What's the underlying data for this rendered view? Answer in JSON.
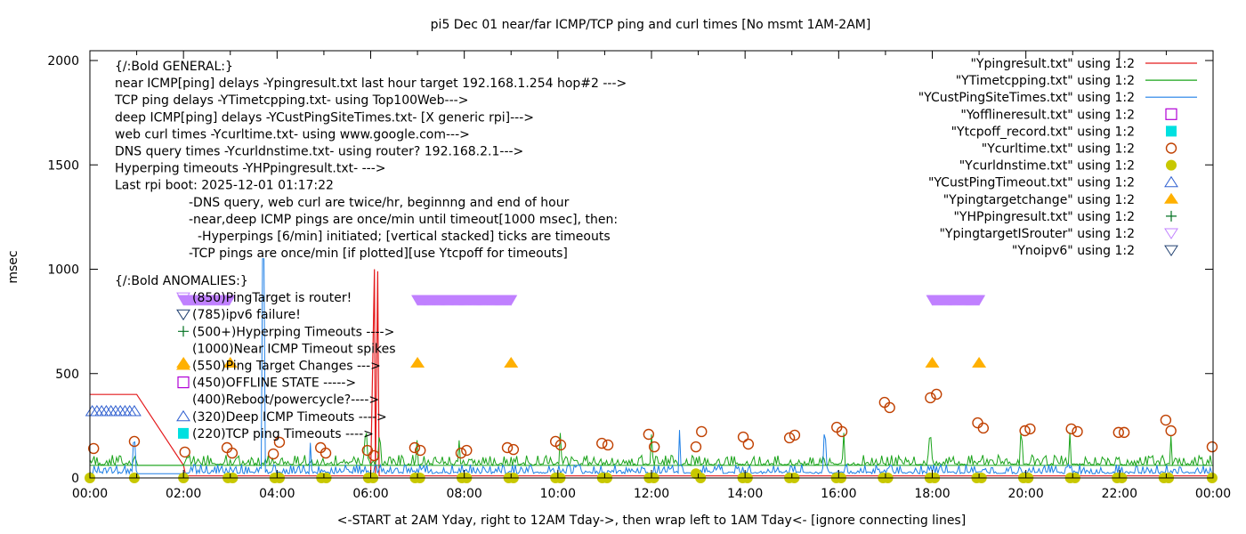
{
  "chart_data": {
    "type": "line",
    "title": "pi5 Dec 01  near/far ICMP/TCP ping and curl times [No msmt 1AM-2AM]",
    "xlabel": "<-START at 2AM Yday, right to 12AM Tday->, then wrap left to 1AM Tday<- [ignore connecting lines]",
    "ylabel": "msec",
    "xlim_hours": [
      0,
      24
    ],
    "ylim": [
      0,
      2050
    ],
    "x_ticks": [
      "00:00",
      "02:00",
      "04:00",
      "06:00",
      "08:00",
      "10:00",
      "12:00",
      "14:00",
      "16:00",
      "18:00",
      "20:00",
      "22:00",
      "00:00"
    ],
    "x_tick_hours": [
      0,
      2,
      4,
      6,
      8,
      10,
      12,
      14,
      16,
      18,
      20,
      22,
      24
    ],
    "y_ticks": [
      0,
      500,
      1000,
      1500,
      2000
    ],
    "grid": false,
    "legend_position": "top-right",
    "annotations": {
      "general_header": "{/:Bold GENERAL:}",
      "general_lines": [
        "near ICMP[ping] delays -Ypingresult.txt last hour target 192.168.1.254 hop#2 --->",
        "TCP ping delays -YTimetcpping.txt- using Top100Web--->",
        "deep ICMP[ping] delays -YCustPingSiteTimes.txt- [X generic rpi]--->",
        "web curl times -Ycurltime.txt- using www.google.com--->",
        "DNS query times -Ycurldnstime.txt- using router? 192.168.2.1--->",
        "Hyperping timeouts -YHPpingresult.txt- --->",
        "Last rpi boot: 2025-12-01 01:17:22"
      ],
      "notes": [
        "-DNS query, web curl are twice/hr, beginnng and end of hour",
        "-near,deep ICMP pings are once/min until timeout[1000 msec], then:",
        "-Hyperpings [6/min] initiated; [vertical stacked] ticks are timeouts",
        "-TCP pings are once/min [if plotted][use Ytcpoff for timeouts]"
      ],
      "anomalies_header": "{/:Bold ANOMALIES:}",
      "anomalies": [
        {
          "marker": "tri-down-violet",
          "text": "(850)PingTarget is router!"
        },
        {
          "marker": "tri-down-navy",
          "text": "(785)ipv6 failure!"
        },
        {
          "marker": "plus-green",
          "text": "(500+)Hyperping Timeouts ---->"
        },
        {
          "marker": "none",
          "text": "(1000)Near ICMP Timeout spikes"
        },
        {
          "marker": "tri-up-orange",
          "text": "(550)Ping Target Changes --->"
        },
        {
          "marker": "square-open-purple",
          "text": "(450)OFFLINE STATE ----->"
        },
        {
          "marker": "none",
          "text": "(400)Reboot/powercycle?---->"
        },
        {
          "marker": "tri-up-open-blue",
          "text": "(320)Deep ICMP Timeouts ---->"
        },
        {
          "marker": "square-cyan",
          "text": "(220)TCP ping Timeouts ---->"
        }
      ]
    },
    "series": [
      {
        "name": "\"Ypingresult.txt\" using 1:2",
        "style": "line",
        "color": "#e41a1c",
        "points": [
          [
            0,
            400
          ],
          [
            1.0,
            400
          ],
          [
            2.0,
            60
          ],
          [
            2.05,
            10
          ],
          [
            6.0,
            10
          ],
          [
            6.08,
            1000
          ],
          [
            6.1,
            10
          ],
          [
            6.15,
            990
          ],
          [
            6.18,
            10
          ],
          [
            24,
            10
          ]
        ]
      },
      {
        "name": "\"YTimetcpping.txt\" using 1:2",
        "style": "line",
        "color": "#1aa31a",
        "baseline": 60,
        "noise_amp": 50,
        "spikes_hours": [
          5.9,
          6.2,
          7.0,
          7.9,
          10.05,
          12.0,
          16.1,
          17.95,
          19.9,
          20.95,
          23.1
        ]
      },
      {
        "name": "\"YCustPingSiteTimes.txt\" using 1:2",
        "style": "line",
        "color": "#1e7fe6",
        "baseline": 20,
        "noise_amp": 45,
        "spikes_hours": [
          0.95,
          3.7,
          4.7,
          12.6,
          15.7
        ]
      },
      {
        "name": "\"Yofflineresult.txt\" using 1:2",
        "style": "marker",
        "marker": "square-open",
        "color": "#b000d6",
        "points": []
      },
      {
        "name": "\"Ytcpoff_record.txt\" using 1:2",
        "style": "marker",
        "marker": "square-filled",
        "color": "#00e0e0",
        "points": []
      },
      {
        "name": "\"Ycurltime.txt\" using 1:2",
        "style": "marker",
        "marker": "circle-open",
        "color": "#c04000",
        "points": [
          [
            0.08,
            141
          ],
          [
            0.95,
            175
          ],
          [
            2.03,
            124
          ],
          [
            2.93,
            145
          ],
          [
            3.04,
            119
          ],
          [
            3.92,
            115
          ],
          [
            4.05,
            171
          ],
          [
            4.93,
            145
          ],
          [
            5.04,
            119
          ],
          [
            5.93,
            132
          ],
          [
            6.07,
            107
          ],
          [
            6.94,
            145
          ],
          [
            7.06,
            132
          ],
          [
            7.93,
            119
          ],
          [
            8.05,
            132
          ],
          [
            8.92,
            145
          ],
          [
            9.05,
            136
          ],
          [
            9.95,
            175
          ],
          [
            10.06,
            158
          ],
          [
            10.94,
            166
          ],
          [
            11.07,
            158
          ],
          [
            11.94,
            209
          ],
          [
            12.06,
            149
          ],
          [
            12.95,
            149
          ],
          [
            13.07,
            222
          ],
          [
            13.96,
            196
          ],
          [
            14.07,
            162
          ],
          [
            14.95,
            192
          ],
          [
            15.06,
            205
          ],
          [
            15.96,
            243
          ],
          [
            16.07,
            222
          ],
          [
            16.98,
            362
          ],
          [
            17.09,
            337
          ],
          [
            17.96,
            384
          ],
          [
            18.09,
            401
          ],
          [
            18.97,
            264
          ],
          [
            19.09,
            239
          ],
          [
            19.98,
            226
          ],
          [
            20.09,
            235
          ],
          [
            20.97,
            235
          ],
          [
            21.1,
            222
          ],
          [
            21.98,
            218
          ],
          [
            22.1,
            218
          ],
          [
            22.99,
            277
          ],
          [
            23.1,
            226
          ],
          [
            23.98,
            149
          ]
        ]
      },
      {
        "name": "\"Ycurldnstime.txt\" using 1:2",
        "style": "marker",
        "marker": "circle-filled",
        "color": "#c8c800",
        "points": [
          [
            0.0,
            0
          ],
          [
            0.95,
            0
          ],
          [
            2.0,
            0
          ],
          [
            2.95,
            0
          ],
          [
            3.05,
            0
          ],
          [
            3.95,
            0
          ],
          [
            4.05,
            0
          ],
          [
            4.95,
            0
          ],
          [
            5.05,
            0
          ],
          [
            5.95,
            0
          ],
          [
            6.05,
            0
          ],
          [
            6.95,
            0
          ],
          [
            7.05,
            0
          ],
          [
            7.95,
            0
          ],
          [
            8.05,
            0
          ],
          [
            8.95,
            0
          ],
          [
            9.05,
            0
          ],
          [
            9.95,
            0
          ],
          [
            10.05,
            0
          ],
          [
            10.95,
            0
          ],
          [
            11.05,
            0
          ],
          [
            11.95,
            0
          ],
          [
            12.05,
            0
          ],
          [
            12.95,
            20
          ],
          [
            13.05,
            0
          ],
          [
            13.95,
            0
          ],
          [
            14.05,
            0
          ],
          [
            14.95,
            0
          ],
          [
            15.05,
            0
          ],
          [
            15.95,
            0
          ],
          [
            16.05,
            0
          ],
          [
            16.95,
            0
          ],
          [
            17.05,
            0
          ],
          [
            17.95,
            0
          ],
          [
            18.05,
            0
          ],
          [
            18.95,
            0
          ],
          [
            19.05,
            0
          ],
          [
            19.95,
            0
          ],
          [
            20.05,
            0
          ],
          [
            20.95,
            0
          ],
          [
            21.05,
            0
          ],
          [
            21.95,
            0
          ],
          [
            22.05,
            0
          ],
          [
            22.95,
            0
          ],
          [
            23.05,
            0
          ],
          [
            23.98,
            0
          ]
        ]
      },
      {
        "name": "\"YCustPingTimeout.txt\" using 1:2",
        "style": "marker",
        "marker": "tri-up-open",
        "color": "#3060d0",
        "points": [
          [
            0.05,
            320
          ],
          [
            0.15,
            320
          ],
          [
            0.25,
            320
          ],
          [
            0.35,
            320
          ],
          [
            0.45,
            320
          ],
          [
            0.55,
            320
          ],
          [
            0.65,
            320
          ],
          [
            0.75,
            320
          ],
          [
            0.85,
            320
          ],
          [
            0.95,
            320
          ]
        ]
      },
      {
        "name": "\"Ypingtargetchange\" using 1:2",
        "style": "marker",
        "marker": "tri-up-filled",
        "color": "#ffb000",
        "points": [
          [
            2.0,
            550
          ],
          [
            3.0,
            550
          ],
          [
            7.0,
            550
          ],
          [
            9.0,
            550
          ],
          [
            18.0,
            550
          ],
          [
            19.0,
            550
          ]
        ]
      },
      {
        "name": "\"YHPpingresult.txt\" using 1:2",
        "style": "marker",
        "marker": "plus",
        "color": "#007020",
        "points": []
      },
      {
        "name": "\"YpingtargetISrouter\" using 1:2",
        "style": "marker",
        "marker": "tri-down-open",
        "color": "#c080ff",
        "ranges_hours": [
          [
            2.0,
            3.0
          ],
          [
            7.0,
            9.0
          ],
          [
            18.0,
            19.0
          ]
        ],
        "value": 850
      },
      {
        "name": "\"Ynoipv6\" using 1:2",
        "style": "marker",
        "marker": "tri-down-open",
        "color": "#204070",
        "points": []
      }
    ]
  }
}
